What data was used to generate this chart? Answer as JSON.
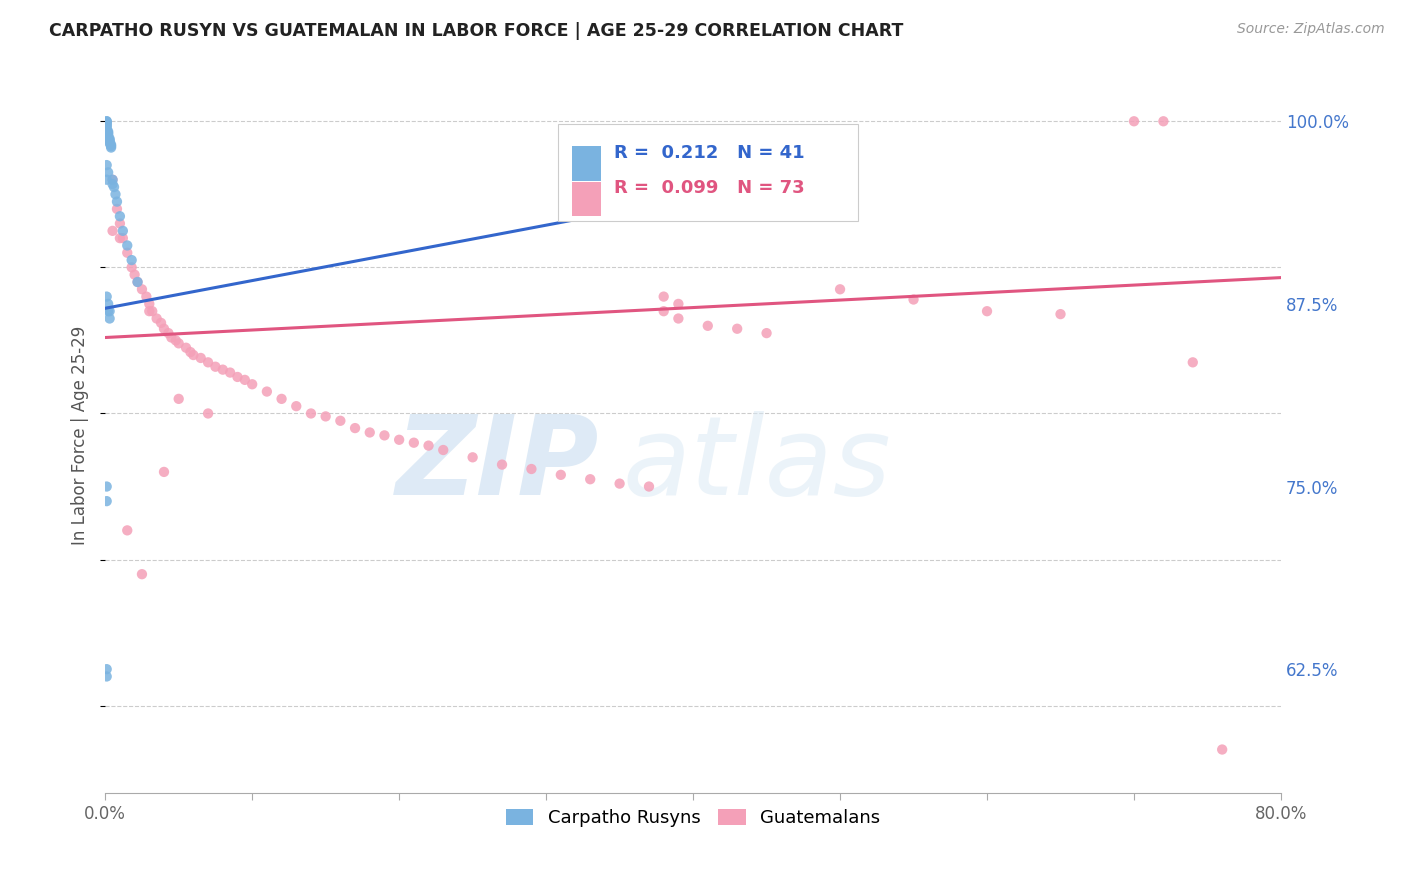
{
  "title": "CARPATHO RUSYN VS GUATEMALAN IN LABOR FORCE | AGE 25-29 CORRELATION CHART",
  "source": "Source: ZipAtlas.com",
  "ylabel": "In Labor Force | Age 25-29",
  "xlim": [
    0.0,
    0.8
  ],
  "ylim": [
    0.54,
    1.03
  ],
  "yticks": [
    0.625,
    0.75,
    0.875,
    1.0
  ],
  "ytick_labels": [
    "62.5%",
    "75.0%",
    "87.5%",
    "100.0%"
  ],
  "xticks": [
    0.0,
    0.1,
    0.2,
    0.3,
    0.4,
    0.5,
    0.6,
    0.7,
    0.8
  ],
  "xtick_labels": [
    "0.0%",
    "",
    "",
    "",
    "",
    "",
    "",
    "",
    "80.0%"
  ],
  "blue_R": 0.212,
  "blue_N": 41,
  "pink_R": 0.099,
  "pink_N": 73,
  "blue_color": "#7ab3e0",
  "pink_color": "#f4a0b8",
  "blue_line_color": "#3366cc",
  "pink_line_color": "#e05580",
  "tick_color": "#4477cc",
  "grid_color": "#cccccc",
  "blue_line_x0": 0.0,
  "blue_line_y0": 0.872,
  "blue_line_x1": 0.48,
  "blue_line_y1": 0.963,
  "pink_line_x0": 0.0,
  "pink_line_x1": 0.8,
  "pink_line_y0": 0.852,
  "pink_line_y1": 0.893,
  "blue_points_x": [
    0.001,
    0.001,
    0.001,
    0.001,
    0.001,
    0.001,
    0.001,
    0.002,
    0.002,
    0.002,
    0.002,
    0.002,
    0.003,
    0.003,
    0.003,
    0.003,
    0.004,
    0.004,
    0.004,
    0.005,
    0.005,
    0.006,
    0.007,
    0.008,
    0.01,
    0.012,
    0.015,
    0.018,
    0.022,
    0.001,
    0.002,
    0.003,
    0.001,
    0.001,
    0.002,
    0.003,
    0.001,
    0.001,
    0.001,
    0.002,
    0.001
  ],
  "blue_points_y": [
    1.0,
    1.0,
    0.999,
    0.998,
    0.997,
    0.996,
    0.994,
    0.993,
    0.992,
    0.991,
    0.99,
    0.989,
    0.988,
    0.987,
    0.986,
    0.985,
    0.984,
    0.983,
    0.982,
    0.96,
    0.957,
    0.955,
    0.95,
    0.945,
    0.935,
    0.925,
    0.915,
    0.905,
    0.89,
    0.88,
    0.875,
    0.87,
    0.75,
    0.74,
    0.87,
    0.865,
    0.625,
    0.62,
    0.97,
    0.965,
    0.96
  ],
  "pink_points_x": [
    0.005,
    0.008,
    0.01,
    0.012,
    0.015,
    0.018,
    0.02,
    0.022,
    0.025,
    0.028,
    0.03,
    0.032,
    0.035,
    0.038,
    0.04,
    0.043,
    0.045,
    0.048,
    0.05,
    0.055,
    0.058,
    0.06,
    0.065,
    0.07,
    0.075,
    0.08,
    0.085,
    0.09,
    0.095,
    0.1,
    0.11,
    0.12,
    0.13,
    0.14,
    0.15,
    0.16,
    0.17,
    0.18,
    0.19,
    0.2,
    0.21,
    0.22,
    0.23,
    0.25,
    0.27,
    0.29,
    0.31,
    0.33,
    0.35,
    0.37,
    0.38,
    0.39,
    0.41,
    0.43,
    0.45,
    0.5,
    0.55,
    0.6,
    0.65,
    0.7,
    0.72,
    0.74,
    0.76,
    0.005,
    0.01,
    0.38,
    0.39,
    0.03,
    0.05,
    0.07,
    0.015,
    0.025,
    0.04
  ],
  "pink_points_y": [
    0.96,
    0.94,
    0.93,
    0.92,
    0.91,
    0.9,
    0.895,
    0.89,
    0.885,
    0.88,
    0.875,
    0.87,
    0.865,
    0.862,
    0.858,
    0.855,
    0.852,
    0.85,
    0.848,
    0.845,
    0.842,
    0.84,
    0.838,
    0.835,
    0.832,
    0.83,
    0.828,
    0.825,
    0.823,
    0.82,
    0.815,
    0.81,
    0.805,
    0.8,
    0.798,
    0.795,
    0.79,
    0.787,
    0.785,
    0.782,
    0.78,
    0.778,
    0.775,
    0.77,
    0.765,
    0.762,
    0.758,
    0.755,
    0.752,
    0.75,
    0.87,
    0.865,
    0.86,
    0.858,
    0.855,
    0.885,
    0.878,
    0.87,
    0.868,
    1.0,
    1.0,
    0.835,
    0.57,
    0.925,
    0.92,
    0.88,
    0.875,
    0.87,
    0.81,
    0.8,
    0.72,
    0.69,
    0.76
  ]
}
